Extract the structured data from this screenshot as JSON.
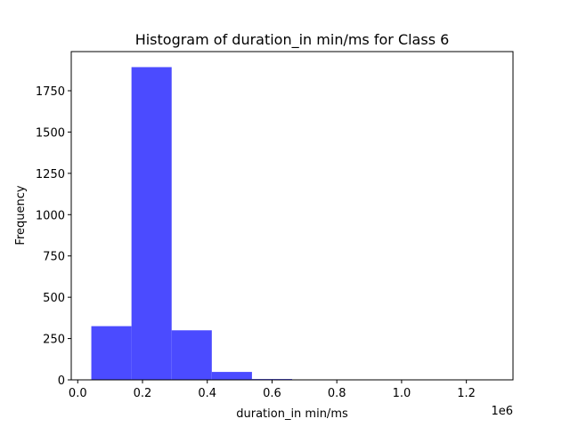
{
  "chart_data": {
    "type": "bar",
    "title": "Histogram of duration_in min/ms for Class 6",
    "xlabel": "duration_in min/ms",
    "ylabel": "Frequency",
    "x_offset_label": "1e6",
    "bar_color": "#4b4bff",
    "bins": [
      {
        "start": 0.042,
        "end": 0.166,
        "count": 325
      },
      {
        "start": 0.166,
        "end": 0.29,
        "count": 1893
      },
      {
        "start": 0.29,
        "end": 0.414,
        "count": 300
      },
      {
        "start": 0.414,
        "end": 0.538,
        "count": 48
      },
      {
        "start": 0.538,
        "end": 0.662,
        "count": 5
      },
      {
        "start": 0.662,
        "end": 0.786,
        "count": 1
      },
      {
        "start": 0.786,
        "end": 0.91,
        "count": 0
      },
      {
        "start": 0.91,
        "end": 1.034,
        "count": 0
      },
      {
        "start": 1.034,
        "end": 1.158,
        "count": 0
      },
      {
        "start": 1.158,
        "end": 1.282,
        "count": 1
      }
    ],
    "xlim": [
      -0.02,
      1.344
    ],
    "ylim": [
      0,
      1987
    ],
    "xticks": [
      {
        "value": 0.0,
        "label": "0.0"
      },
      {
        "value": 0.2,
        "label": "0.2"
      },
      {
        "value": 0.4,
        "label": "0.4"
      },
      {
        "value": 0.6,
        "label": "0.6"
      },
      {
        "value": 0.8,
        "label": "0.8"
      },
      {
        "value": 1.0,
        "label": "1.0"
      },
      {
        "value": 1.2,
        "label": "1.2"
      }
    ],
    "yticks": [
      {
        "value": 0,
        "label": "0"
      },
      {
        "value": 250,
        "label": "250"
      },
      {
        "value": 500,
        "label": "500"
      },
      {
        "value": 750,
        "label": "750"
      },
      {
        "value": 1000,
        "label": "1000"
      },
      {
        "value": 1250,
        "label": "1250"
      },
      {
        "value": 1500,
        "label": "1500"
      },
      {
        "value": 1750,
        "label": "1750"
      }
    ],
    "grid": false
  }
}
